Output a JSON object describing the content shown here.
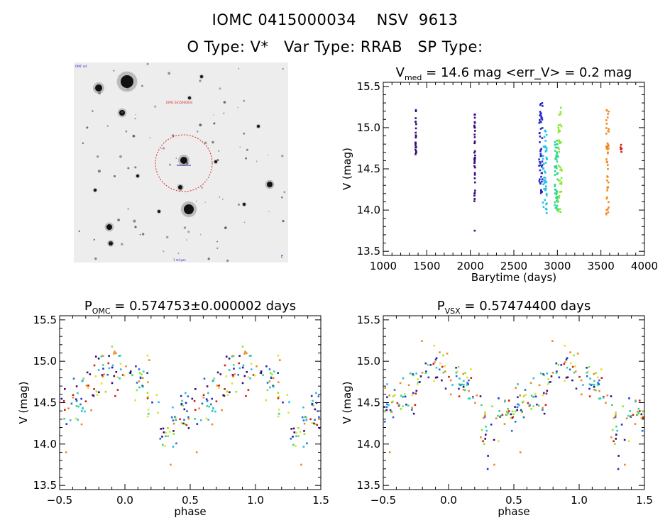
{
  "header": {
    "line1": "IOMC 0415000034    NSV  9613",
    "line2": "O Type: V*   Var Type: RRAB   SP Type:"
  },
  "colors": {
    "axis": "#000000",
    "circle": "#dd2222",
    "palette": [
      "#3a0a78",
      "#2a2ac8",
      "#1e6ee0",
      "#22c0e8",
      "#30d890",
      "#88e830",
      "#e8e020",
      "#f08820",
      "#d02010"
    ]
  },
  "sky_image": {
    "corner_labels": [
      "OMC ref",
      "IOMC 0415000034",
      "1 ref pos",
      "E"
    ]
  },
  "chart_data": [
    {
      "id": "lightcurve",
      "type": "scatter",
      "title_main": "V",
      "title_sub": "med",
      "title_rest": " = 14.6 mag <err_V> = 0.2 mag",
      "xlabel": "Barytime (days)",
      "ylabel": "V (mag)",
      "xlim": [
        1000,
        4000
      ],
      "ylim": [
        15.55,
        13.45
      ],
      "xticks": [
        "1000",
        "1500",
        "2000",
        "2500",
        "3000",
        "3500",
        "4000"
      ],
      "xtick_values": [
        1000,
        1500,
        2000,
        2500,
        3000,
        3500,
        4000
      ],
      "yticks": [
        "13.5",
        "14.0",
        "14.5",
        "15.0",
        "15.5"
      ],
      "ytick_values": [
        13.5,
        14.0,
        14.5,
        15.0,
        15.5
      ],
      "series": [
        {
          "color": "#3a0a78",
          "x_range": [
            1370,
            1380
          ],
          "y_range": [
            14.65,
            15.25
          ],
          "count": 22
        },
        {
          "color": "#3a0a78",
          "x_range": [
            2045,
            2055
          ],
          "y_range": [
            14.1,
            15.2
          ],
          "count": 40
        },
        {
          "color": "#2a2ac8",
          "x_range": [
            2790,
            2830
          ],
          "y_range": [
            14.2,
            15.3
          ],
          "count": 55
        },
        {
          "color": "#22c0e8",
          "x_range": [
            2830,
            2880
          ],
          "y_range": [
            13.95,
            15.0
          ],
          "count": 45
        },
        {
          "color": "#30d890",
          "x_range": [
            2970,
            3010
          ],
          "y_range": [
            14.0,
            14.9
          ],
          "count": 55
        },
        {
          "color": "#88e830",
          "x_range": [
            3010,
            3050
          ],
          "y_range": [
            13.95,
            15.3
          ],
          "count": 40
        },
        {
          "color": "#f08820",
          "x_range": [
            3560,
            3590
          ],
          "y_range": [
            13.9,
            15.25
          ],
          "count": 45
        },
        {
          "color": "#d02010",
          "x_range": [
            3725,
            3740
          ],
          "y_range": [
            14.7,
            14.8
          ],
          "count": 6
        }
      ],
      "outliers": [
        {
          "x": 2050,
          "y": 13.75,
          "color": "#3a0a78"
        }
      ]
    },
    {
      "id": "phase-omc",
      "type": "scatter",
      "title_main": "P",
      "title_sub": "OMC",
      "title_rest": " = 0.574753±0.000002 days",
      "xlabel": "phase",
      "ylabel": "V (mag)",
      "xlim": [
        -0.5,
        1.5
      ],
      "ylim": [
        15.55,
        13.45
      ],
      "xticks": [
        "−0.5",
        "0.0",
        "0.5",
        "1.0",
        "1.5"
      ],
      "xtick_values": [
        -0.5,
        0.0,
        0.5,
        1.0,
        1.5
      ],
      "yticks": [
        "13.5",
        "14.0",
        "14.5",
        "15.0",
        "15.5"
      ],
      "ytick_values": [
        13.5,
        14.0,
        14.5,
        15.0,
        15.5
      ],
      "curve_phase": [
        0.0,
        0.1,
        0.2,
        0.25,
        0.3,
        0.35,
        0.4,
        0.5,
        0.6,
        0.7,
        0.8,
        0.9,
        1.0
      ],
      "curve_mag": [
        14.85,
        14.75,
        14.6,
        14.35,
        14.05,
        14.15,
        14.3,
        14.4,
        14.5,
        14.6,
        14.8,
        14.9,
        14.85
      ],
      "scatter_sigma": 0.17,
      "points_per_cycle": 160,
      "outliers": [
        {
          "x": 0.35,
          "y": 13.75
        },
        {
          "x": 1.35,
          "y": 13.75
        },
        {
          "x": 0.55,
          "y": 13.9
        },
        {
          "x": -0.45,
          "y": 13.9
        }
      ]
    },
    {
      "id": "phase-vsx",
      "type": "scatter",
      "title_main": "P",
      "title_sub": "VSX",
      "title_rest": " = 0.57474400 days",
      "xlabel": "phase",
      "ylabel": "V (mag)",
      "xlim": [
        -0.5,
        1.5
      ],
      "ylim": [
        15.55,
        13.45
      ],
      "xticks": [
        "−0.5",
        "0.0",
        "0.5",
        "1.0",
        "1.5"
      ],
      "xtick_values": [
        -0.5,
        0.0,
        0.5,
        1.0,
        1.5
      ],
      "yticks": [
        "13.5",
        "14.0",
        "14.5",
        "15.0",
        "15.5"
      ],
      "ytick_values": [
        13.5,
        14.0,
        14.5,
        15.0,
        15.5
      ],
      "curve_phase": [
        0.0,
        0.1,
        0.2,
        0.25,
        0.3,
        0.35,
        0.4,
        0.5,
        0.6,
        0.7,
        0.8,
        0.9,
        1.0
      ],
      "curve_mag": [
        14.85,
        14.75,
        14.6,
        14.35,
        14.05,
        14.15,
        14.3,
        14.4,
        14.5,
        14.6,
        14.8,
        14.9,
        14.85
      ],
      "scatter_sigma": 0.17,
      "points_per_cycle": 160,
      "outliers": [
        {
          "x": 0.35,
          "y": 13.75
        },
        {
          "x": 1.35,
          "y": 13.75
        },
        {
          "x": 0.55,
          "y": 13.9
        },
        {
          "x": -0.45,
          "y": 13.9
        }
      ]
    }
  ]
}
